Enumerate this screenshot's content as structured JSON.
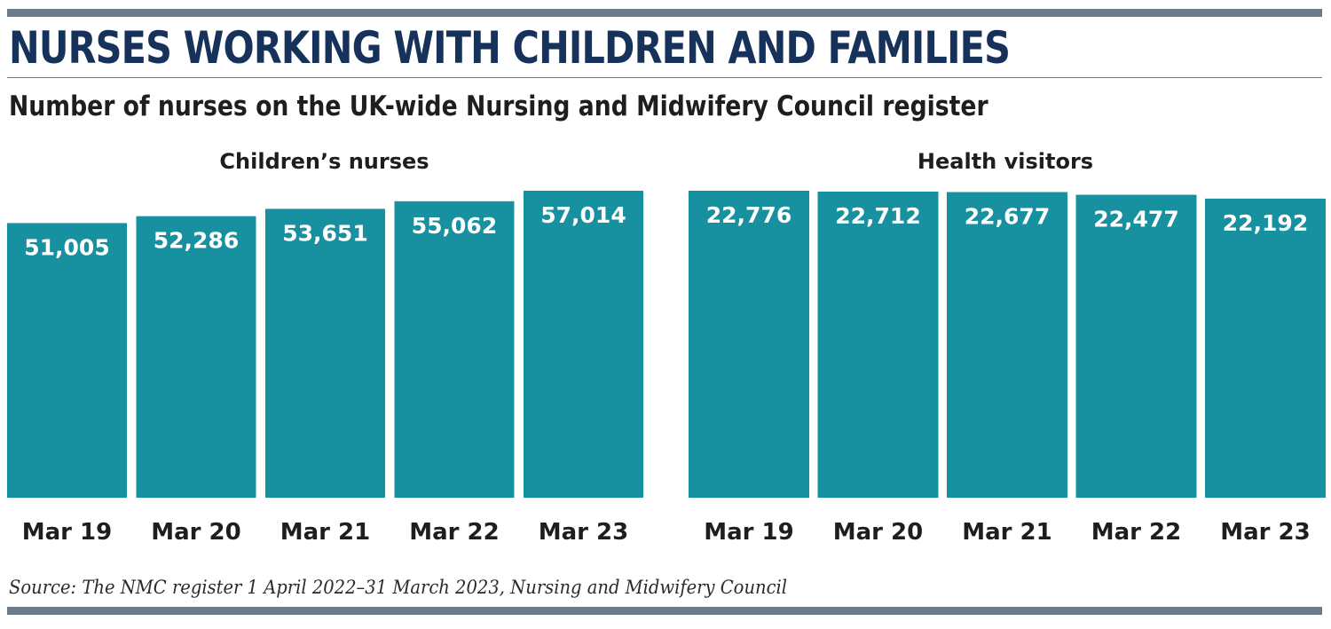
{
  "title": "NURSES WORKING WITH CHILDREN AND FAMILIES",
  "subtitle": "Number of nurses on the UK-wide Nursing and Midwifery Council register",
  "source": "Source: The NMC register 1 April 2022–31 March 2023, Nursing and Midwifery Council",
  "colors": {
    "bar": "#17909f",
    "label": "#ffffff",
    "title": "#16325a",
    "rule": "#6d7a88"
  },
  "chart_data": [
    {
      "type": "bar",
      "title": "Children’s nurses",
      "categories": [
        "Mar 19",
        "Mar 20",
        "Mar 21",
        "Mar 22",
        "Mar 23"
      ],
      "values": [
        51005,
        52286,
        53651,
        55062,
        57014
      ],
      "value_labels": [
        "51,005",
        "52,286",
        "53,651",
        "55,062",
        "57,014"
      ],
      "xlabel": "",
      "ylabel": "",
      "ylim": [
        0,
        57014
      ],
      "grid": false,
      "legend": "none"
    },
    {
      "type": "bar",
      "title": "Health visitors",
      "categories": [
        "Mar 19",
        "Mar 20",
        "Mar 21",
        "Mar 22",
        "Mar 23"
      ],
      "values": [
        22776,
        22712,
        22677,
        22477,
        22192
      ],
      "value_labels": [
        "22,776",
        "22,712",
        "22,677",
        "22,477",
        "22,192"
      ],
      "xlabel": "",
      "ylabel": "",
      "ylim": [
        0,
        22776
      ],
      "grid": false,
      "legend": "none"
    }
  ]
}
